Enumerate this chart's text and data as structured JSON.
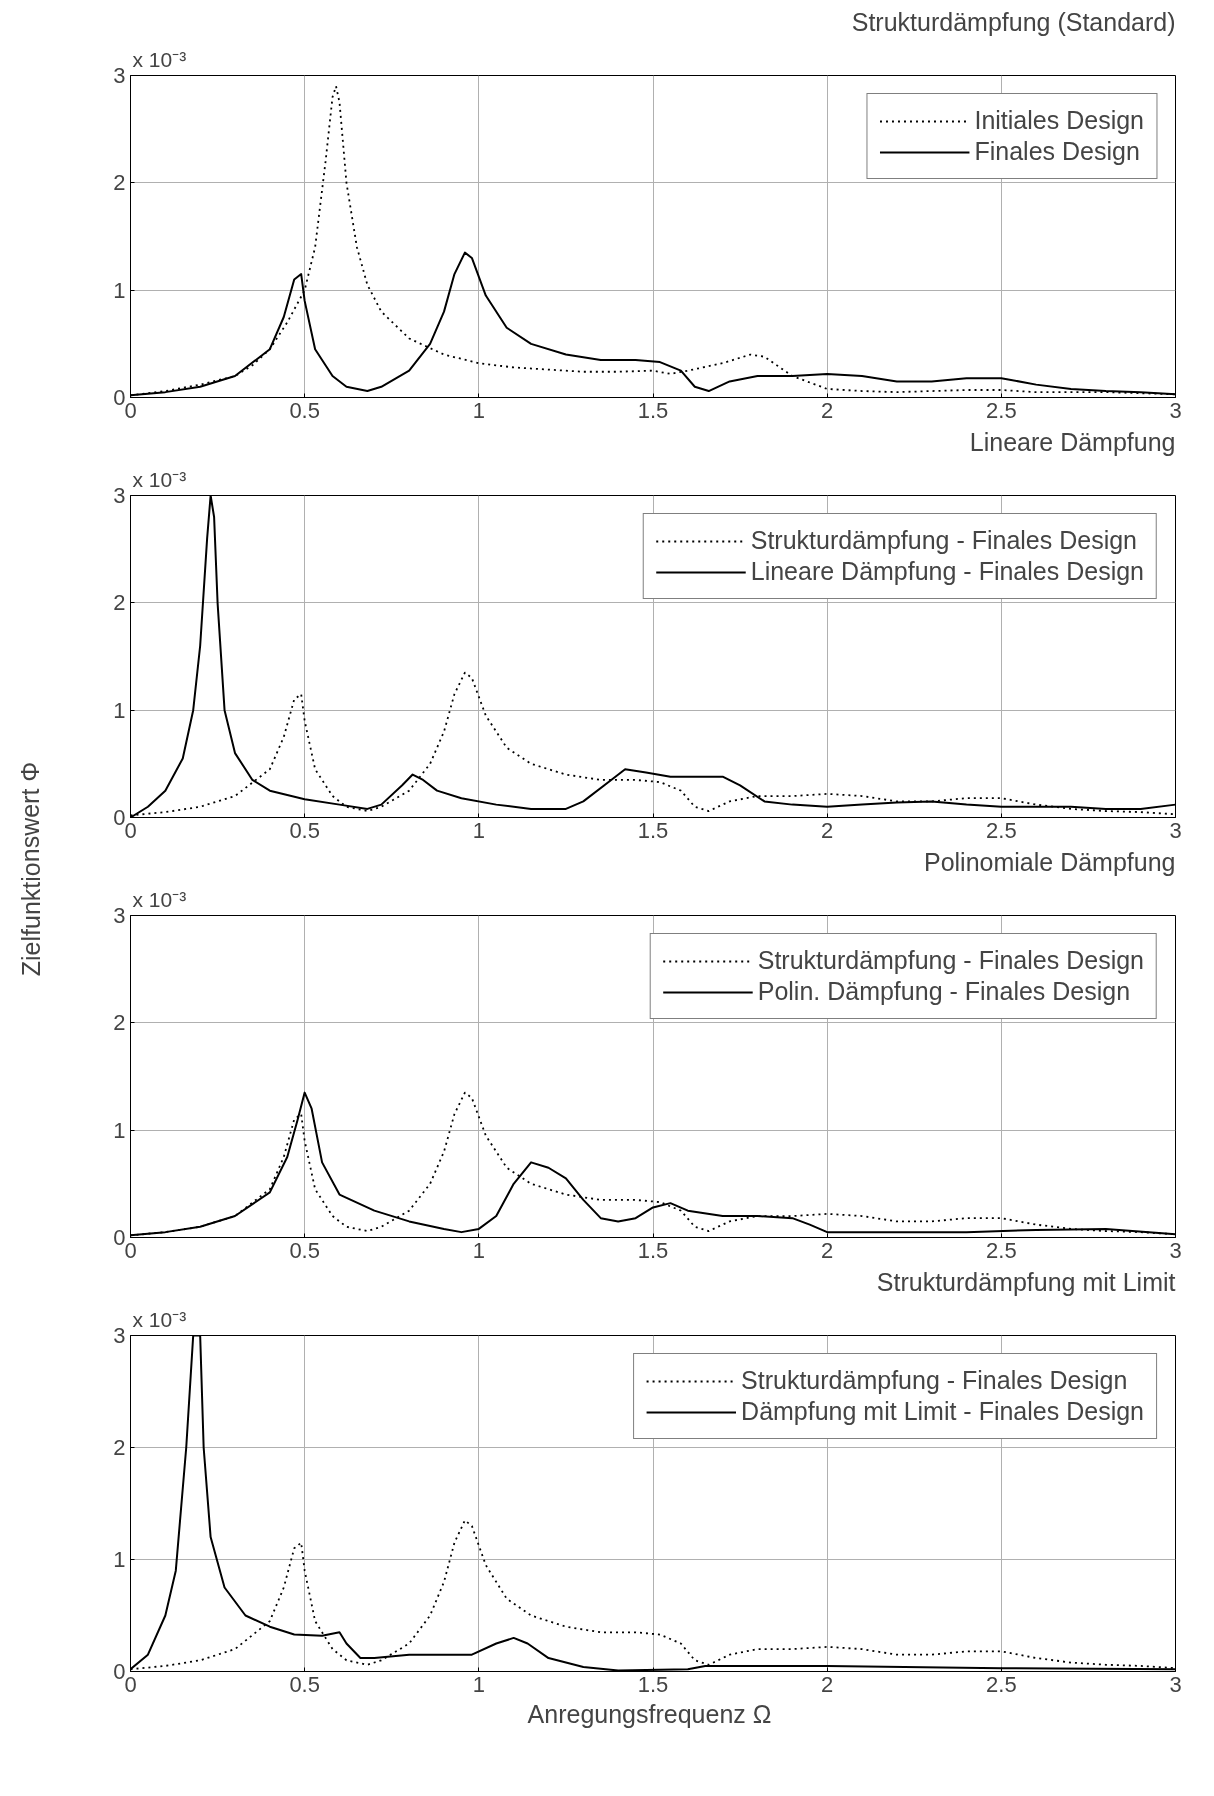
{
  "chart_data": [
    {
      "type": "line",
      "title": "Strukturdämpfung (Standard)",
      "annotations": [
        "x 10⁻³"
      ],
      "xlim": [
        0,
        3
      ],
      "xticks": [
        0,
        0.5,
        1,
        1.5,
        2,
        2.5,
        3
      ],
      "ylim": [
        0,
        3
      ],
      "yticks": [
        0,
        1,
        2,
        3
      ],
      "grid": true,
      "legend": "top right",
      "marker": "none",
      "series": [
        {
          "name": "Initiales Design",
          "color": "#000000",
          "line_style": "dotted",
          "x": [
            0,
            0.1,
            0.2,
            0.3,
            0.35,
            0.4,
            0.45,
            0.5,
            0.53,
            0.56,
            0.58,
            0.59,
            0.6,
            0.62,
            0.65,
            0.68,
            0.72,
            0.8,
            0.9,
            1.0,
            1.1,
            1.2,
            1.3,
            1.4,
            1.5,
            1.55,
            1.6,
            1.7,
            1.78,
            1.82,
            1.9,
            2.0,
            2.1,
            2.2,
            2.4,
            2.5,
            2.6,
            2.8,
            3.0
          ],
          "values": [
            0.02,
            0.06,
            0.12,
            0.2,
            0.3,
            0.45,
            0.7,
            1.0,
            1.4,
            2.2,
            2.8,
            2.9,
            2.75,
            2.0,
            1.4,
            1.05,
            0.8,
            0.55,
            0.4,
            0.32,
            0.28,
            0.26,
            0.24,
            0.24,
            0.25,
            0.22,
            0.25,
            0.32,
            0.4,
            0.38,
            0.2,
            0.08,
            0.06,
            0.05,
            0.07,
            0.07,
            0.05,
            0.05,
            0.03
          ]
        },
        {
          "name": "Finales Design",
          "color": "#000000",
          "line_style": "solid",
          "x": [
            0,
            0.1,
            0.2,
            0.3,
            0.4,
            0.44,
            0.47,
            0.49,
            0.5,
            0.53,
            0.58,
            0.62,
            0.68,
            0.72,
            0.8,
            0.86,
            0.9,
            0.93,
            0.96,
            0.98,
            1.02,
            1.08,
            1.15,
            1.25,
            1.35,
            1.45,
            1.52,
            1.58,
            1.62,
            1.66,
            1.72,
            1.8,
            1.9,
            2.0,
            2.1,
            2.2,
            2.3,
            2.4,
            2.5,
            2.6,
            2.7,
            2.8,
            2.9,
            3.0
          ],
          "values": [
            0.02,
            0.05,
            0.1,
            0.2,
            0.45,
            0.75,
            1.1,
            1.15,
            0.9,
            0.45,
            0.2,
            0.1,
            0.06,
            0.1,
            0.25,
            0.5,
            0.8,
            1.15,
            1.35,
            1.3,
            0.95,
            0.65,
            0.5,
            0.4,
            0.35,
            0.35,
            0.33,
            0.25,
            0.1,
            0.06,
            0.15,
            0.2,
            0.2,
            0.22,
            0.2,
            0.15,
            0.15,
            0.18,
            0.18,
            0.12,
            0.08,
            0.06,
            0.05,
            0.03
          ]
        }
      ]
    },
    {
      "type": "line",
      "title": "Lineare Dämpfung",
      "ylabel": "Zielfunktionswert  Φ",
      "annotations": [
        "x 10⁻³"
      ],
      "xlim": [
        0,
        3
      ],
      "xticks": [
        0,
        0.5,
        1,
        1.5,
        2,
        2.5,
        3
      ],
      "ylim": [
        0,
        3
      ],
      "yticks": [
        0,
        1,
        2,
        3
      ],
      "grid": true,
      "legend": "top right",
      "marker": "none",
      "series": [
        {
          "name": "Strukturdämpfung - Finales Design",
          "color": "#000000",
          "line_style": "dotted",
          "x": [
            0,
            0.1,
            0.2,
            0.3,
            0.4,
            0.44,
            0.47,
            0.49,
            0.5,
            0.53,
            0.58,
            0.62,
            0.68,
            0.72,
            0.8,
            0.86,
            0.9,
            0.93,
            0.96,
            0.98,
            1.02,
            1.08,
            1.15,
            1.25,
            1.35,
            1.45,
            1.52,
            1.58,
            1.62,
            1.66,
            1.72,
            1.8,
            1.9,
            2.0,
            2.1,
            2.2,
            2.3,
            2.4,
            2.5,
            2.6,
            2.7,
            2.8,
            2.9,
            3.0
          ],
          "values": [
            0.02,
            0.05,
            0.1,
            0.2,
            0.45,
            0.75,
            1.1,
            1.15,
            0.9,
            0.45,
            0.2,
            0.1,
            0.06,
            0.1,
            0.25,
            0.5,
            0.8,
            1.15,
            1.35,
            1.3,
            0.95,
            0.65,
            0.5,
            0.4,
            0.35,
            0.35,
            0.33,
            0.25,
            0.1,
            0.06,
            0.15,
            0.2,
            0.2,
            0.22,
            0.2,
            0.15,
            0.15,
            0.18,
            0.18,
            0.12,
            0.08,
            0.06,
            0.05,
            0.03
          ]
        },
        {
          "name": "Lineare Dämpfung - Finales Design",
          "color": "#000000",
          "line_style": "solid",
          "x": [
            0,
            0.05,
            0.1,
            0.15,
            0.18,
            0.2,
            0.22,
            0.23,
            0.24,
            0.25,
            0.27,
            0.3,
            0.35,
            0.4,
            0.5,
            0.6,
            0.68,
            0.72,
            0.78,
            0.81,
            0.84,
            0.88,
            0.95,
            1.05,
            1.15,
            1.25,
            1.3,
            1.38,
            1.42,
            1.48,
            1.55,
            1.7,
            1.75,
            1.82,
            1.9,
            2.0,
            2.1,
            2.2,
            2.3,
            2.4,
            2.5,
            2.6,
            2.7,
            2.8,
            2.9,
            3.0
          ],
          "values": [
            0.0,
            0.1,
            0.25,
            0.55,
            1.0,
            1.6,
            2.6,
            3.0,
            2.8,
            2.0,
            1.0,
            0.6,
            0.35,
            0.25,
            0.17,
            0.12,
            0.08,
            0.12,
            0.3,
            0.4,
            0.35,
            0.25,
            0.18,
            0.12,
            0.08,
            0.08,
            0.15,
            0.35,
            0.45,
            0.42,
            0.38,
            0.38,
            0.3,
            0.15,
            0.12,
            0.1,
            0.12,
            0.14,
            0.15,
            0.12,
            0.1,
            0.1,
            0.1,
            0.08,
            0.08,
            0.12
          ]
        }
      ]
    },
    {
      "type": "line",
      "title": "Polinomiale Dämpfung",
      "annotations": [
        "x 10⁻³"
      ],
      "xlim": [
        0,
        3
      ],
      "xticks": [
        0,
        0.5,
        1,
        1.5,
        2,
        2.5,
        3
      ],
      "ylim": [
        0,
        3
      ],
      "yticks": [
        0,
        1,
        2,
        3
      ],
      "grid": true,
      "legend": "top right",
      "marker": "none",
      "series": [
        {
          "name": "Strukturdämpfung - Finales Design",
          "color": "#000000",
          "line_style": "dotted",
          "x": [
            0,
            0.1,
            0.2,
            0.3,
            0.4,
            0.44,
            0.47,
            0.49,
            0.5,
            0.53,
            0.58,
            0.62,
            0.68,
            0.72,
            0.8,
            0.86,
            0.9,
            0.93,
            0.96,
            0.98,
            1.02,
            1.08,
            1.15,
            1.25,
            1.35,
            1.45,
            1.52,
            1.58,
            1.62,
            1.66,
            1.72,
            1.8,
            1.9,
            2.0,
            2.1,
            2.2,
            2.3,
            2.4,
            2.5,
            2.6,
            2.7,
            2.8,
            2.9,
            3.0
          ],
          "values": [
            0.02,
            0.05,
            0.1,
            0.2,
            0.45,
            0.75,
            1.1,
            1.15,
            0.9,
            0.45,
            0.2,
            0.1,
            0.06,
            0.1,
            0.25,
            0.5,
            0.8,
            1.15,
            1.35,
            1.3,
            0.95,
            0.65,
            0.5,
            0.4,
            0.35,
            0.35,
            0.33,
            0.25,
            0.1,
            0.06,
            0.15,
            0.2,
            0.2,
            0.22,
            0.2,
            0.15,
            0.15,
            0.18,
            0.18,
            0.12,
            0.08,
            0.06,
            0.05,
            0.03
          ]
        },
        {
          "name": "Polin. Dämpfung - Finales Design",
          "color": "#000000",
          "line_style": "solid",
          "x": [
            0,
            0.1,
            0.2,
            0.3,
            0.4,
            0.45,
            0.48,
            0.5,
            0.52,
            0.55,
            0.6,
            0.7,
            0.8,
            0.9,
            0.95,
            1.0,
            1.05,
            1.1,
            1.15,
            1.2,
            1.25,
            1.3,
            1.35,
            1.4,
            1.45,
            1.5,
            1.55,
            1.6,
            1.7,
            1.8,
            1.9,
            1.95,
            2.0,
            2.2,
            2.4,
            2.6,
            2.8,
            3.0
          ],
          "values": [
            0.02,
            0.05,
            0.1,
            0.2,
            0.42,
            0.75,
            1.1,
            1.35,
            1.2,
            0.7,
            0.4,
            0.25,
            0.15,
            0.08,
            0.05,
            0.08,
            0.2,
            0.5,
            0.7,
            0.65,
            0.55,
            0.35,
            0.18,
            0.15,
            0.18,
            0.28,
            0.32,
            0.25,
            0.2,
            0.2,
            0.18,
            0.12,
            0.05,
            0.05,
            0.05,
            0.07,
            0.08,
            0.03
          ]
        }
      ]
    },
    {
      "type": "line",
      "title": "Strukturdämpfung mit Limit",
      "xlabel": "Anregungsfrequenz  Ω",
      "annotations": [
        "x 10⁻³"
      ],
      "xlim": [
        0,
        3
      ],
      "xticks": [
        0,
        0.5,
        1,
        1.5,
        2,
        2.5,
        3
      ],
      "ylim": [
        0,
        3
      ],
      "yticks": [
        0,
        1,
        2,
        3
      ],
      "grid": true,
      "legend": "top right",
      "marker": "none",
      "series": [
        {
          "name": "Strukturdämpfung - Finales Design",
          "color": "#000000",
          "line_style": "dotted",
          "x": [
            0,
            0.1,
            0.2,
            0.3,
            0.4,
            0.44,
            0.47,
            0.49,
            0.5,
            0.53,
            0.58,
            0.62,
            0.68,
            0.72,
            0.8,
            0.86,
            0.9,
            0.93,
            0.96,
            0.98,
            1.02,
            1.08,
            1.15,
            1.25,
            1.35,
            1.45,
            1.52,
            1.58,
            1.62,
            1.66,
            1.72,
            1.8,
            1.9,
            2.0,
            2.1,
            2.2,
            2.3,
            2.4,
            2.5,
            2.6,
            2.7,
            2.8,
            2.9,
            3.0
          ],
          "values": [
            0.02,
            0.05,
            0.1,
            0.2,
            0.45,
            0.75,
            1.1,
            1.15,
            0.9,
            0.45,
            0.2,
            0.1,
            0.06,
            0.1,
            0.25,
            0.5,
            0.8,
            1.15,
            1.35,
            1.3,
            0.95,
            0.65,
            0.5,
            0.4,
            0.35,
            0.35,
            0.33,
            0.25,
            0.1,
            0.06,
            0.15,
            0.2,
            0.2,
            0.22,
            0.2,
            0.15,
            0.15,
            0.18,
            0.18,
            0.12,
            0.08,
            0.06,
            0.05,
            0.03
          ]
        },
        {
          "name": "Dämpfung mit Limit - Finales Design",
          "color": "#000000",
          "line_style": "solid",
          "x": [
            0,
            0.05,
            0.1,
            0.13,
            0.16,
            0.18,
            0.2,
            0.21,
            0.23,
            0.27,
            0.33,
            0.4,
            0.47,
            0.55,
            0.6,
            0.62,
            0.66,
            0.7,
            0.8,
            0.9,
            0.98,
            1.05,
            1.1,
            1.14,
            1.2,
            1.3,
            1.4,
            1.6,
            1.65,
            1.8,
            2.0,
            2.5,
            3.0
          ],
          "values": [
            0.02,
            0.15,
            0.5,
            0.9,
            2.0,
            3.0,
            3.0,
            2.0,
            1.2,
            0.75,
            0.5,
            0.4,
            0.33,
            0.32,
            0.35,
            0.25,
            0.12,
            0.12,
            0.15,
            0.15,
            0.15,
            0.25,
            0.3,
            0.25,
            0.12,
            0.04,
            0.01,
            0.02,
            0.05,
            0.05,
            0.05,
            0.03,
            0.02
          ]
        }
      ]
    }
  ]
}
